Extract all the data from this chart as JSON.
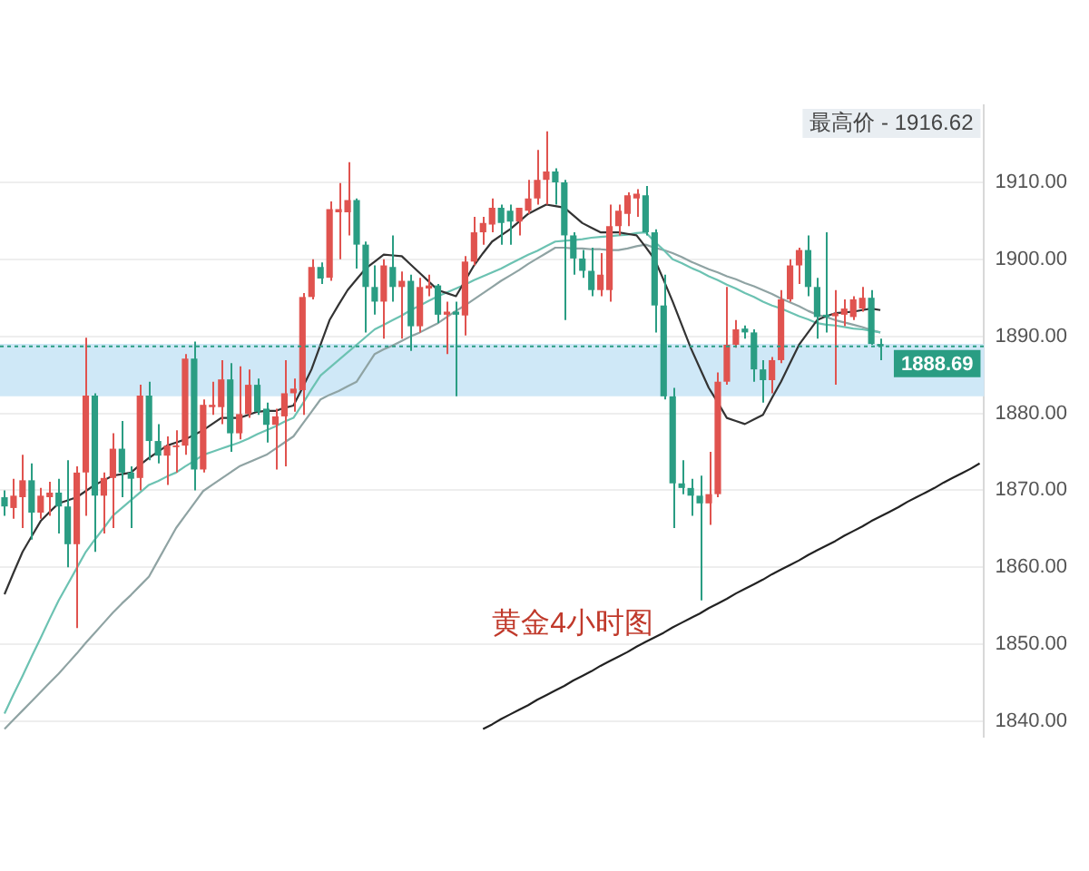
{
  "chart_data": {
    "type": "candlestick",
    "categories": [
      null,
      null,
      null,
      null,
      null,
      null,
      null,
      null,
      null,
      null,
      null,
      null,
      null,
      null,
      null,
      null,
      null,
      null,
      null,
      null,
      null,
      null,
      null,
      null,
      null,
      null,
      null,
      null,
      null,
      null,
      null,
      null,
      null,
      null,
      null,
      null,
      null,
      null,
      null,
      null,
      null,
      null,
      null,
      null,
      null,
      null,
      null,
      null,
      null,
      null,
      null,
      null,
      null,
      null,
      null,
      null,
      null,
      null,
      null,
      null,
      null,
      null,
      null,
      null,
      null,
      null,
      null,
      null,
      null,
      null,
      null,
      null,
      null,
      null,
      null,
      null,
      null,
      null,
      null,
      null,
      null,
      null,
      null,
      null,
      null,
      null,
      null,
      null,
      null,
      null,
      null,
      null,
      null,
      null,
      null,
      null,
      null,
      null,
      null,
      null,
      null,
      null,
      null,
      null,
      null,
      null,
      null,
      null,
      null
    ],
    "ohlc": [
      [
        1869.1,
        1870.0,
        1866.7,
        1867.9
      ],
      [
        1867.7,
        1871.5,
        1866.3,
        1869.3
      ],
      [
        1869.1,
        1874.6,
        1865.1,
        1871.3
      ],
      [
        1871.3,
        1873.5,
        1863.6,
        1867.1
      ],
      [
        1867.1,
        1870.3,
        1866.3,
        1869.3
      ],
      [
        1869.1,
        1871.1,
        1866.7,
        1869.7
      ],
      [
        1869.7,
        1871.5,
        1864.4,
        1867.9
      ],
      [
        1867.9,
        1873.9,
        1860.0,
        1863.0
      ],
      [
        1863.0,
        1873.1,
        1852.1,
        1872.3
      ],
      [
        1872.3,
        1889.8,
        1866.7,
        1882.3
      ],
      [
        1882.3,
        1882.6,
        1862.0,
        1869.3
      ],
      [
        1869.3,
        1872.3,
        1864.4,
        1871.6
      ],
      [
        1871.6,
        1877.4,
        1865.1,
        1875.4
      ],
      [
        1875.4,
        1879.0,
        1869.1,
        1872.3
      ],
      [
        1872.3,
        1873.1,
        1865.1,
        1871.5
      ],
      [
        1871.6,
        1883.7,
        1870.0,
        1882.3
      ],
      [
        1882.3,
        1884.1,
        1873.9,
        1876.4
      ],
      [
        1876.4,
        1878.6,
        1873.5,
        1874.5
      ],
      [
        1874.5,
        1877.0,
        1870.7,
        1875.8
      ],
      [
        1875.6,
        1877.8,
        1872.3,
        1875.8
      ],
      [
        1875.8,
        1887.7,
        1874.6,
        1887.1
      ],
      [
        1887.1,
        1889.3,
        1870.0,
        1872.7
      ],
      [
        1872.7,
        1881.8,
        1872.3,
        1881.1
      ],
      [
        1880.8,
        1884.1,
        1879.8,
        1881.1
      ],
      [
        1880.8,
        1886.9,
        1878.6,
        1884.4
      ],
      [
        1884.4,
        1886.5,
        1875.0,
        1877.4
      ],
      [
        1877.4,
        1886.1,
        1876.6,
        1879.9
      ],
      [
        1879.9,
        1885.7,
        1879.4,
        1883.7
      ],
      [
        1883.7,
        1884.5,
        1879.8,
        1880.2
      ],
      [
        1880.6,
        1881.4,
        1876.2,
        1878.5
      ],
      [
        1878.5,
        1880.6,
        1872.7,
        1879.6
      ],
      [
        1879.6,
        1886.9,
        1873.1,
        1882.6
      ],
      [
        1882.6,
        1884.5,
        1880.2,
        1883.2
      ],
      [
        1883.0,
        1895.6,
        1879.8,
        1895.1
      ],
      [
        1895.1,
        1900.0,
        1894.8,
        1899.0
      ],
      [
        1899.0,
        1899.6,
        1896.8,
        1897.5
      ],
      [
        1897.6,
        1907.5,
        1897.2,
        1906.5
      ],
      [
        1906.1,
        1909.9,
        1900.0,
        1906.5
      ],
      [
        1906.1,
        1912.6,
        1903.1,
        1907.7
      ],
      [
        1907.7,
        1907.9,
        1898.8,
        1901.9
      ],
      [
        1901.9,
        1902.3,
        1890.5,
        1896.4
      ],
      [
        1896.4,
        1899.2,
        1892.8,
        1894.5
      ],
      [
        1894.5,
        1900.0,
        1889.7,
        1899.2
      ],
      [
        1899.0,
        1903.1,
        1894.5,
        1896.4
      ],
      [
        1896.4,
        1898.4,
        1889.7,
        1897.2
      ],
      [
        1897.2,
        1898.0,
        1888.1,
        1891.3
      ],
      [
        1891.3,
        1897.6,
        1890.5,
        1896.4
      ],
      [
        1896.2,
        1898.0,
        1895.2,
        1896.6
      ],
      [
        1896.6,
        1896.8,
        1891.7,
        1892.8
      ],
      [
        1892.8,
        1894.5,
        1887.7,
        1893.2
      ],
      [
        1893.2,
        1894.5,
        1882.2,
        1892.8
      ],
      [
        1892.7,
        1900.4,
        1890.1,
        1899.7
      ],
      [
        1899.7,
        1905.5,
        1899.2,
        1903.5
      ],
      [
        1903.5,
        1905.5,
        1901.9,
        1904.7
      ],
      [
        1904.5,
        1907.9,
        1903.5,
        1906.7
      ],
      [
        1906.7,
        1907.1,
        1901.9,
        1904.7
      ],
      [
        1906.3,
        1907.1,
        1901.9,
        1904.9
      ],
      [
        1904.9,
        1906.7,
        1903.1,
        1906.7
      ],
      [
        1906.3,
        1910.3,
        1905.9,
        1907.9
      ],
      [
        1907.9,
        1914.2,
        1907.1,
        1910.3
      ],
      [
        1910.3,
        1916.62,
        1907.1,
        1911.4
      ],
      [
        1911.4,
        1911.8,
        1907.1,
        1910.0
      ],
      [
        1910.0,
        1910.3,
        1892.1,
        1903.1
      ],
      [
        1903.1,
        1903.5,
        1898.0,
        1900.1
      ],
      [
        1900.1,
        1901.2,
        1897.6,
        1898.5
      ],
      [
        1898.5,
        1901.5,
        1895.2,
        1896.0
      ],
      [
        1896.0,
        1900.8,
        1895.2,
        1898.0
      ],
      [
        1896.0,
        1907.1,
        1894.5,
        1904.3
      ],
      [
        1904.3,
        1907.1,
        1903.1,
        1906.3
      ],
      [
        1905.9,
        1908.7,
        1904.3,
        1908.3
      ],
      [
        1907.9,
        1909.1,
        1905.5,
        1908.5
      ],
      [
        1908.3,
        1909.5,
        1903.1,
        1903.5
      ],
      [
        1903.5,
        1903.9,
        1890.5,
        1894.0
      ],
      [
        1894.0,
        1898.0,
        1881.8,
        1882.2
      ],
      [
        1882.2,
        1883.3,
        1865.1,
        1870.9
      ],
      [
        1870.9,
        1873.9,
        1869.5,
        1870.3
      ],
      [
        1870.3,
        1871.5,
        1866.7,
        1869.3
      ],
      [
        1869.3,
        1871.9,
        1855.7,
        1868.3
      ],
      [
        1868.3,
        1875.0,
        1865.5,
        1869.5
      ],
      [
        1869.5,
        1885.3,
        1869.1,
        1884.1
      ],
      [
        1884.1,
        1896.4,
        1883.7,
        1888.9
      ],
      [
        1888.9,
        1892.1,
        1888.5,
        1890.9
      ],
      [
        1891.0,
        1891.4,
        1889.7,
        1890.5
      ],
      [
        1890.5,
        1890.9,
        1884.1,
        1885.7
      ],
      [
        1885.7,
        1886.9,
        1881.4,
        1884.3
      ],
      [
        1884.3,
        1887.3,
        1882.6,
        1886.9
      ],
      [
        1886.9,
        1896.0,
        1886.5,
        1894.8
      ],
      [
        1894.8,
        1900.0,
        1894.5,
        1899.2
      ],
      [
        1899.2,
        1901.5,
        1896.8,
        1901.2
      ],
      [
        1901.2,
        1903.1,
        1895.2,
        1896.4
      ],
      [
        1896.4,
        1897.6,
        1889.7,
        1892.5
      ],
      [
        1892.8,
        1903.5,
        1890.5,
        1892.5
      ],
      [
        1892.6,
        1896.0,
        1883.7,
        1893.0
      ],
      [
        1892.8,
        1894.8,
        1891.3,
        1893.6
      ],
      [
        1892.5,
        1895.2,
        1892.1,
        1894.8
      ],
      [
        1893.6,
        1896.4,
        1893.2,
        1895.0
      ],
      [
        1895.0,
        1896.0,
        1888.9,
        1889.0
      ],
      [
        1889.0,
        1889.7,
        1886.9,
        1888.69
      ],
      null,
      null,
      null,
      null,
      null,
      null,
      null,
      null,
      null,
      null,
      null
    ],
    "series": [
      {
        "type": "line",
        "color": "#333333",
        "values": [
          1856.5,
          1859.3,
          1862.0,
          1864.0,
          1866.0,
          1867.2,
          1868.3,
          1868.7,
          1869.1,
          1869.9,
          1870.7,
          1871.3,
          1871.9,
          1872.1,
          1872.3,
          1873.3,
          1874.2,
          1875.0,
          1875.8,
          1876.2,
          1876.6,
          1877.2,
          1877.8,
          1878.6,
          1879.4,
          1879.4,
          1879.4,
          1879.8,
          1880.2,
          1880.3,
          1880.3,
          1880.7,
          1881.0,
          1883.3,
          1885.7,
          1888.9,
          1892.1,
          1894.1,
          1896.0,
          1897.4,
          1898.8,
          1899.7,
          1900.6,
          1900.5,
          1900.4,
          1899.3,
          1898.2,
          1897.1,
          1896.0,
          1895.6,
          1895.2,
          1897.2,
          1899.2,
          1900.8,
          1902.3,
          1903.1,
          1903.9,
          1904.9,
          1905.9,
          1906.5,
          1907.1,
          1906.9,
          1906.7,
          1905.7,
          1904.7,
          1904.1,
          1903.5,
          1903.5,
          1903.5,
          1903.3,
          1903.1,
          1901.6,
          1900.0,
          1897.3,
          1894.5,
          1891.5,
          1888.5,
          1885.9,
          1883.3,
          1881.4,
          1879.4,
          1879.0,
          1878.6,
          1879.2,
          1879.8,
          1882.0,
          1884.1,
          1886.5,
          1888.9,
          1890.5,
          1892.1,
          1892.6,
          1893.0,
          1893.1,
          1893.2,
          1893.4,
          1893.6,
          1893.4,
          null,
          null,
          null,
          null,
          null,
          null,
          null,
          null,
          null,
          null,
          null
        ]
      },
      {
        "type": "line",
        "color": "#6cc2b2",
        "values": [
          1841.0,
          1843.5,
          1845.9,
          1848.4,
          1850.8,
          1853.3,
          1855.7,
          1857.8,
          1859.9,
          1862.0,
          1863.6,
          1865.1,
          1866.7,
          1867.7,
          1868.7,
          1869.7,
          1870.7,
          1871.2,
          1871.8,
          1872.3,
          1873.1,
          1873.8,
          1874.6,
          1875.0,
          1875.4,
          1875.8,
          1876.2,
          1876.7,
          1877.3,
          1877.8,
          1878.3,
          1878.9,
          1879.4,
          1881.2,
          1883.1,
          1884.9,
          1885.9,
          1886.9,
          1887.9,
          1888.9,
          1889.9,
          1890.9,
          1891.5,
          1892.1,
          1892.7,
          1893.4,
          1894.0,
          1894.6,
          1895.2,
          1895.7,
          1896.2,
          1896.7,
          1897.3,
          1897.8,
          1898.3,
          1898.8,
          1899.4,
          1900.0,
          1900.6,
          1901.1,
          1901.7,
          1902.3,
          1902.4,
          1902.5,
          1902.6,
          1902.8,
          1902.9,
          1903.0,
          1903.1,
          1903.2,
          1903.4,
          1903.5,
          1902.3,
          1901.2,
          1900.0,
          1899.5,
          1898.9,
          1898.4,
          1897.8,
          1897.3,
          1896.7,
          1896.2,
          1895.6,
          1895.1,
          1894.5,
          1894.0,
          1893.6,
          1893.1,
          1892.6,
          1892.2,
          1891.7,
          1891.5,
          1891.4,
          1891.2,
          1891.0,
          1890.9,
          1890.7,
          1890.5,
          null,
          null,
          null,
          null,
          null,
          null,
          null,
          null,
          null,
          null,
          null
        ]
      },
      {
        "type": "line",
        "color": "#8fa3a3",
        "values": [
          1839.0,
          1840.2,
          1841.4,
          1842.6,
          1843.8,
          1845.0,
          1846.2,
          1847.5,
          1848.8,
          1850.2,
          1851.5,
          1852.8,
          1854.1,
          1855.3,
          1856.4,
          1857.6,
          1858.8,
          1860.9,
          1863.0,
          1865.1,
          1866.7,
          1868.3,
          1869.9,
          1870.7,
          1871.5,
          1872.3,
          1873.1,
          1873.6,
          1874.1,
          1874.6,
          1875.4,
          1876.2,
          1877.0,
          1878.6,
          1880.2,
          1881.8,
          1882.4,
          1882.9,
          1883.5,
          1884.1,
          1885.9,
          1887.7,
          1888.3,
          1888.8,
          1889.4,
          1890.0,
          1890.5,
          1891.1,
          1891.7,
          1892.5,
          1893.3,
          1894.0,
          1894.8,
          1895.6,
          1896.4,
          1897.2,
          1897.9,
          1898.6,
          1899.4,
          1900.1,
          1900.8,
          1901.5,
          1901.5,
          1901.4,
          1901.4,
          1901.3,
          1901.3,
          1901.2,
          1901.2,
          1901.4,
          1901.7,
          1901.9,
          1901.5,
          1901.2,
          1900.8,
          1900.3,
          1899.7,
          1899.2,
          1898.7,
          1898.3,
          1897.8,
          1897.4,
          1896.9,
          1896.5,
          1896.0,
          1895.5,
          1894.9,
          1894.4,
          1893.9,
          1893.3,
          1892.8,
          1892.5,
          1892.1,
          1891.8,
          1891.5,
          1891.2,
          1890.8,
          1890.5,
          null,
          null,
          null,
          null,
          null,
          null,
          null,
          null,
          null,
          null,
          null
        ]
      },
      {
        "type": "line",
        "color": "#222222",
        "values": [
          null,
          null,
          null,
          null,
          null,
          null,
          null,
          null,
          null,
          null,
          null,
          null,
          null,
          null,
          null,
          null,
          null,
          null,
          null,
          null,
          null,
          null,
          null,
          null,
          null,
          null,
          null,
          null,
          null,
          null,
          null,
          null,
          null,
          null,
          null,
          null,
          null,
          null,
          null,
          null,
          null,
          null,
          null,
          null,
          null,
          null,
          null,
          null,
          null,
          null,
          null,
          null,
          null,
          1839.0,
          1839.6,
          1840.3,
          1840.9,
          1841.5,
          1842.1,
          1842.8,
          1843.4,
          1844.0,
          1844.6,
          1845.3,
          1845.9,
          1846.5,
          1847.2,
          1847.8,
          1848.4,
          1849.0,
          1849.7,
          1850.3,
          1850.9,
          1851.5,
          1852.2,
          1852.8,
          1853.4,
          1854.0,
          1854.7,
          1855.3,
          1855.9,
          1856.6,
          1857.2,
          1857.8,
          1858.4,
          1859.1,
          1859.7,
          1860.3,
          1860.9,
          1861.6,
          1862.2,
          1862.8,
          1863.4,
          1864.1,
          1864.7,
          1865.3,
          1866.0,
          1866.6,
          1867.2,
          1867.8,
          1868.5,
          1869.1,
          1869.7,
          1870.3,
          1871.0,
          1871.6,
          1872.2,
          1872.8,
          1873.5
        ]
      }
    ],
    "ylim": [
      1838,
      1920
    ],
    "yticks": [
      {
        "value": 1840,
        "label": "1840.00"
      },
      {
        "value": 1850,
        "label": "1850.00"
      },
      {
        "value": 1860,
        "label": "1860.00"
      },
      {
        "value": 1870,
        "label": "1870.00"
      },
      {
        "value": 1880,
        "label": "1880.00"
      },
      {
        "value": 1890,
        "label": "1890.00"
      },
      {
        "value": 1900,
        "label": "1900.00"
      },
      {
        "value": 1910,
        "label": "1910.00"
      }
    ],
    "bands": [
      {
        "axis": "y",
        "from": 1882.2,
        "to": 1889.0,
        "color": "#cfe8f7"
      }
    ],
    "ref_lines": [
      {
        "axis": "y",
        "value": 1888.69,
        "label": "1888.69",
        "color": "#2a9d83",
        "line_style": "dotted"
      }
    ],
    "annotations": [
      "黄金4小时图",
      "最高价 - 1916.62"
    ],
    "grid": "y",
    "legend": false,
    "tick_labels": "y"
  }
}
